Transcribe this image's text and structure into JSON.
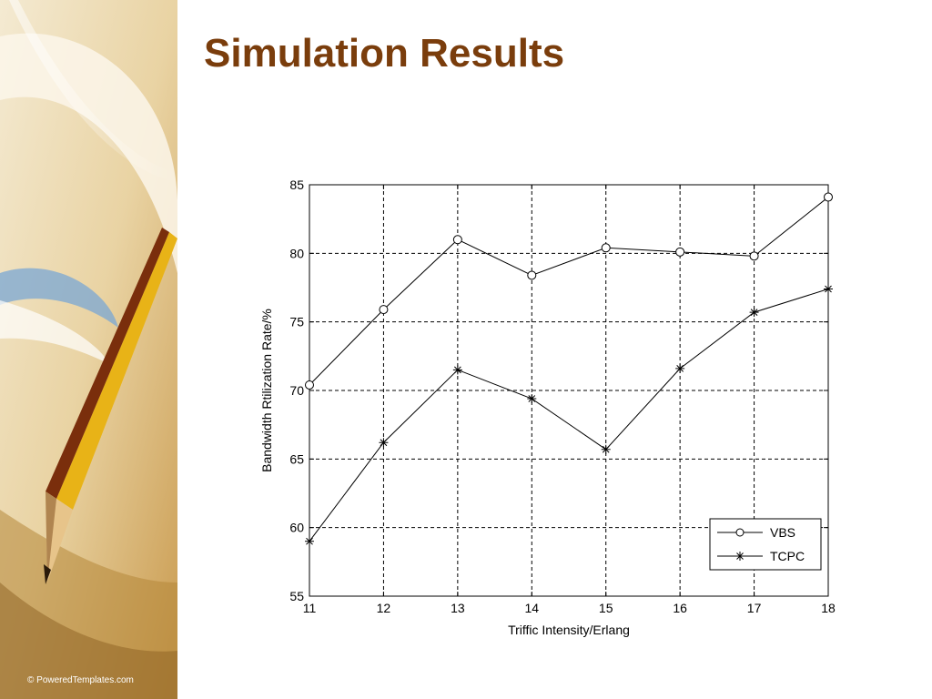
{
  "slide": {
    "title": "Simulation Results",
    "credit": "© PoweredTemplates.com"
  },
  "chart_data": {
    "type": "line",
    "x": [
      11,
      12,
      13,
      14,
      15,
      16,
      17,
      18
    ],
    "series": [
      {
        "name": "VBS",
        "marker": "circle",
        "values": [
          70.4,
          75.9,
          81.0,
          78.4,
          80.4,
          80.1,
          79.8,
          84.1
        ]
      },
      {
        "name": "TCPC",
        "marker": "star",
        "values": [
          59.0,
          66.2,
          71.5,
          69.4,
          65.7,
          71.6,
          75.7,
          77.4
        ]
      }
    ],
    "xlabel": "Triffic Intensity/Erlang",
    "ylabel": "Bandwidth Rtilization Rate/%",
    "xlim": [
      11,
      18
    ],
    "ylim": [
      55,
      85
    ],
    "xticks": [
      11,
      12,
      13,
      14,
      15,
      16,
      17,
      18
    ],
    "yticks": [
      55,
      60,
      65,
      70,
      75,
      80,
      85
    ],
    "grid": true,
    "legend": "bottom-right",
    "line_color": "#000000"
  },
  "colors": {
    "title": "#7a3d0c",
    "background": "#ffffff"
  }
}
